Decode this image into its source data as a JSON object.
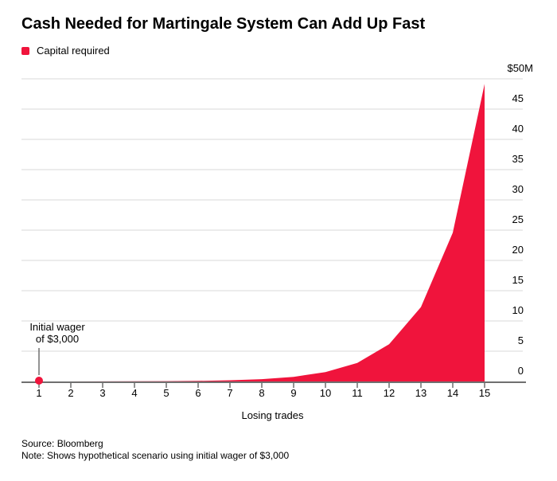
{
  "header": {
    "title": "Cash Needed for Martingale System Can Add Up Fast"
  },
  "legend": {
    "label": "Capital required"
  },
  "colors": {
    "accent_red": "#f0143c",
    "gridline": "#d8d8d8",
    "axis": "#6f6f6f",
    "text": "#000000"
  },
  "chart_data": {
    "type": "area",
    "title": "Cash Needed for Martingale System Can Add Up Fast",
    "xlabel": "Losing trades",
    "ylabel": "",
    "x_ticks": [
      "1",
      "2",
      "3",
      "4",
      "5",
      "6",
      "7",
      "8",
      "9",
      "10",
      "11",
      "12",
      "13",
      "14",
      "15"
    ],
    "series": [
      {
        "name": "Capital required",
        "color": "#f0143c",
        "x": [
          1,
          2,
          3,
          4,
          5,
          6,
          7,
          8,
          9,
          10,
          11,
          12,
          13,
          14,
          15
        ],
        "values_usd_millions": [
          0.003,
          0.006,
          0.012,
          0.024,
          0.048,
          0.096,
          0.192,
          0.384,
          0.768,
          1.536,
          3.072,
          6.144,
          12.288,
          24.576,
          49.152
        ]
      }
    ],
    "y_axis": {
      "side": "right",
      "min": 0,
      "max": 50,
      "grid": true,
      "unit_top_label": "$50M",
      "tick_values": [
        45,
        40,
        35,
        30,
        25,
        20,
        15,
        10,
        5,
        0
      ],
      "tick_labels": [
        "45",
        "40",
        "35",
        "30",
        "25",
        "20",
        "15",
        "10",
        "5",
        "0"
      ]
    },
    "annotation": {
      "text_line1": "Initial wager",
      "text_line2": "of $3,000",
      "target_x": 1,
      "target_value_usd": 3000
    }
  },
  "footer": {
    "source": "Source: Bloomberg",
    "note": "Note: Shows hypothetical scenario using initial wager of $3,000"
  }
}
